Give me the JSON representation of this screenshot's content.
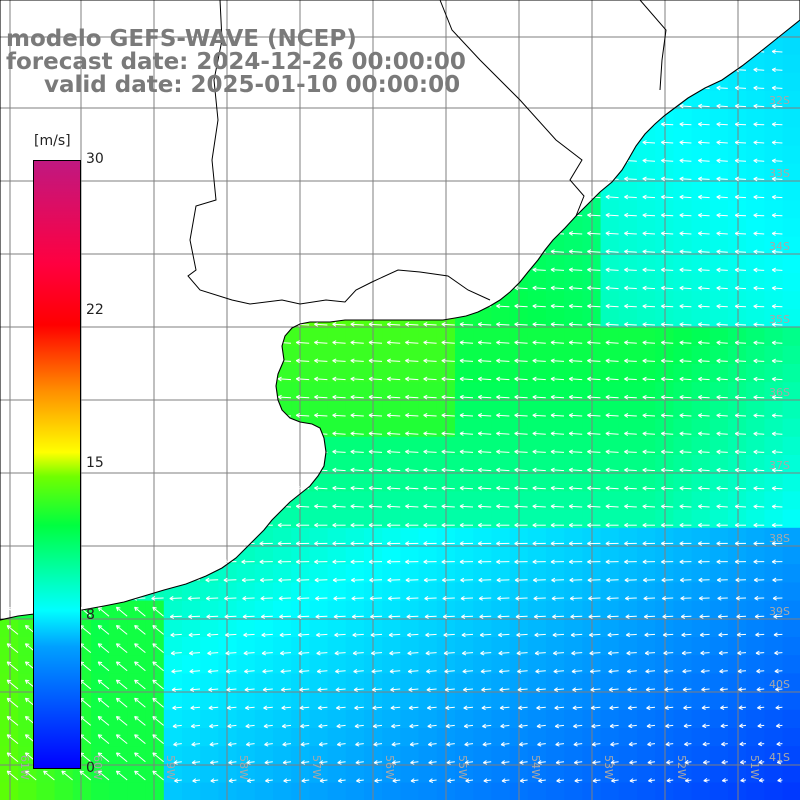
{
  "header": {
    "line1": "modelo GEFS-WAVE (NCEP)",
    "line2": "forecast date: 2024-12-26 00:00:00",
    "line3": "valid date: 2025-01-10 00:00:00"
  },
  "colorbar": {
    "unit": "[m/s]",
    "ticks": [
      {
        "label": "30",
        "value": 30
      },
      {
        "label": "22",
        "value": 22
      },
      {
        "label": "15",
        "value": 15
      },
      {
        "label": "8",
        "value": 8
      },
      {
        "label": "0",
        "value": 0
      }
    ]
  },
  "map": {
    "lat_labels": [
      "32S",
      "33S",
      "34S",
      "35S",
      "36S",
      "37S",
      "38S",
      "39S",
      "40S",
      "41S"
    ],
    "lon_labels": [
      "61W",
      "60W",
      "59W",
      "58W",
      "57W",
      "56W",
      "55W",
      "54W",
      "53W",
      "52W",
      "51W"
    ],
    "land_color": "#ffffff",
    "grid_color": "#7f7f7f"
  }
}
